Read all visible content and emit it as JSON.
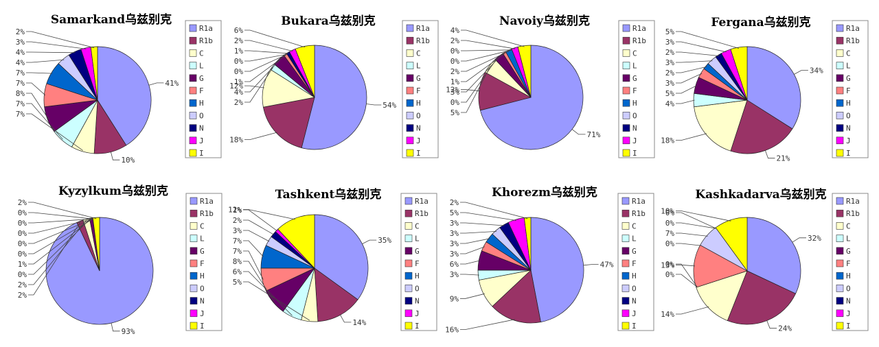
{
  "chart_data": [
    {
      "type": "pie",
      "title": "Samarkand乌兹别克",
      "legend": "right",
      "categories": [
        "R1a",
        "R1b",
        "C",
        "L",
        "G",
        "F",
        "H",
        "O",
        "N",
        "J",
        "I"
      ],
      "values": [
        41,
        10,
        7,
        7,
        8,
        7,
        7,
        4,
        4,
        3,
        2
      ],
      "labels": [
        "41%",
        "10%",
        "7%",
        "7%",
        "8%",
        "7%",
        "7%",
        "4%",
        "4%",
        "3%",
        "2%"
      ]
    },
    {
      "type": "pie",
      "title": "Bukara乌兹别克",
      "legend": "right",
      "categories": [
        "R1a",
        "R1b",
        "C",
        "L",
        "G",
        "F",
        "H",
        "O",
        "N",
        "J",
        "I"
      ],
      "values": [
        54,
        18,
        12,
        2,
        4,
        1,
        0,
        0,
        1,
        2,
        6
      ],
      "labels": [
        "54%",
        "18%",
        "12%",
        "2%",
        "4%",
        "1%",
        "0%",
        "0%",
        "1%",
        "2%",
        "6%"
      ]
    },
    {
      "type": "pie",
      "title": "Navoiy乌兹别克",
      "legend": "right",
      "categories": [
        "R1a",
        "R1b",
        "C",
        "L",
        "G",
        "F",
        "H",
        "O",
        "N",
        "J",
        "I"
      ],
      "values": [
        71,
        12,
        5,
        0,
        3,
        1,
        2,
        0,
        0,
        2,
        4
      ],
      "labels": [
        "71%",
        "12%",
        "5%",
        "0%",
        "3%",
        "1%",
        "2%",
        "0%",
        "0%",
        "2%",
        "4%"
      ]
    },
    {
      "type": "pie",
      "title": "Fergana乌兹别克",
      "legend": "right",
      "categories": [
        "R1a",
        "R1b",
        "C",
        "L",
        "G",
        "F",
        "H",
        "O",
        "N",
        "J",
        "I"
      ],
      "values": [
        34,
        21,
        18,
        4,
        5,
        3,
        2,
        3,
        2,
        3,
        5
      ],
      "labels": [
        "34%",
        "21%",
        "18%",
        "4%",
        "5%",
        "3%",
        "2%",
        "3%",
        "2%",
        "3%",
        "5%"
      ]
    },
    {
      "type": "pie",
      "title": "Kyzylkum乌兹别克",
      "legend": "right",
      "categories": [
        "R1a",
        "R1b",
        "C",
        "L",
        "G",
        "F",
        "H",
        "O",
        "N",
        "J",
        "I"
      ],
      "values": [
        93,
        2,
        2,
        0,
        1,
        0,
        0,
        0,
        0,
        0,
        2
      ],
      "labels": [
        "93%",
        "2%",
        "2%",
        "0%",
        "1%",
        "0%",
        "0%",
        "0%",
        "0%",
        "0%",
        "2%"
      ]
    },
    {
      "type": "pie",
      "title": "Tashkent乌兹别克",
      "legend": "right",
      "categories": [
        "R1a",
        "R1b",
        "C",
        "L",
        "G",
        "F",
        "H",
        "O",
        "N",
        "J",
        "I"
      ],
      "values": [
        35,
        14,
        5,
        6,
        8,
        7,
        7,
        3,
        2,
        1,
        12
      ],
      "labels": [
        "35%",
        "14%",
        "5%",
        "6%",
        "8%",
        "7%",
        "7%",
        "3%",
        "2%",
        "1%",
        "12%"
      ]
    },
    {
      "type": "pie",
      "title": "Khorezm乌兹别克",
      "legend": "right",
      "categories": [
        "R1a",
        "R1b",
        "C",
        "L",
        "G",
        "F",
        "H",
        "O",
        "N",
        "J",
        "I"
      ],
      "values": [
        47,
        16,
        9,
        3,
        6,
        3,
        3,
        3,
        3,
        5,
        2
      ],
      "labels": [
        "47%",
        "16%",
        "9%",
        "3%",
        "6%",
        "3%",
        "3%",
        "3%",
        "3%",
        "5%",
        "2%"
      ]
    },
    {
      "type": "pie",
      "title": "Kashkadarva乌兹别克",
      "legend": "right",
      "categories": [
        "R1a",
        "R1b",
        "C",
        "L",
        "G",
        "F",
        "H",
        "O",
        "N",
        "J",
        "I"
      ],
      "values": [
        32,
        24,
        14,
        0,
        0,
        13,
        0,
        7,
        0,
        0,
        10
      ],
      "labels": [
        "32%",
        "24%",
        "14%",
        "0%",
        "0%",
        "13%",
        "0%",
        "7%",
        "0%",
        "0%",
        "10%"
      ]
    }
  ],
  "colors": [
    "#9999ff",
    "#993366",
    "#ffffcc",
    "#ccffff",
    "#660066",
    "#ff8080",
    "#0066cc",
    "#ccccff",
    "#000080",
    "#ff00ff",
    "#ffff00"
  ]
}
